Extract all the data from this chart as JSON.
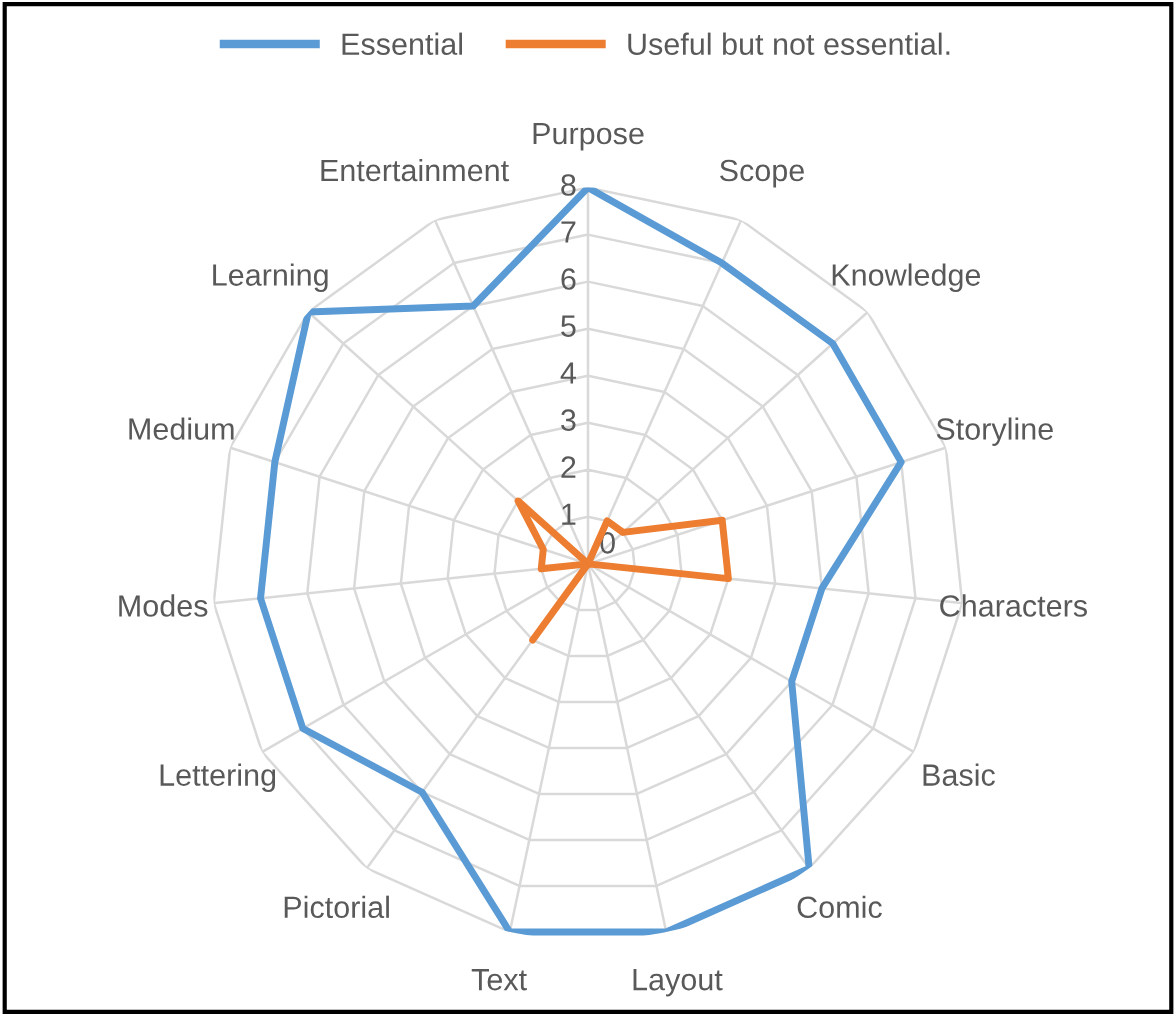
{
  "chart_data": {
    "type": "radar",
    "categories": [
      "Purpose",
      "Scope",
      "Knowledge",
      "Storyline",
      "Characters",
      "Basic",
      "Comic",
      "Layout",
      "Text",
      "Pictorial",
      "Lettering",
      "Modes",
      "Medium",
      "Learning",
      "Entertainment"
    ],
    "series": [
      {
        "name": "Essential",
        "color": "#5b9bd5",
        "values": [
          8,
          7,
          7,
          7,
          5,
          5,
          8,
          8,
          8,
          6,
          7,
          7,
          7,
          8,
          6
        ]
      },
      {
        "name": "Useful but not essential.",
        "color": "#ed7d31",
        "values": [
          0,
          1,
          1,
          3,
          3,
          0,
          0,
          0,
          0,
          2,
          0,
          1,
          1,
          2,
          0
        ]
      }
    ],
    "ylim": [
      0,
      8
    ],
    "yticks": [
      0,
      1,
      2,
      3,
      4,
      5,
      6,
      7,
      8
    ],
    "grid": true,
    "legend": "top",
    "marker": "none",
    "line_style": "solid"
  }
}
